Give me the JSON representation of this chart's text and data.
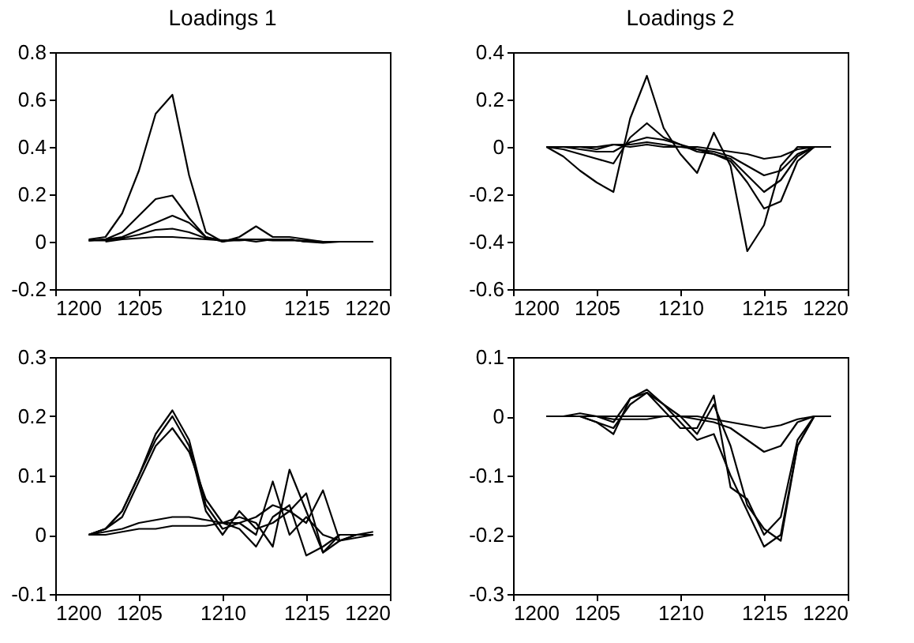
{
  "chart_data": [
    {
      "type": "line",
      "title": "Loadings 1",
      "x": [
        1202,
        1203,
        1204,
        1205,
        1206,
        1207,
        1208,
        1209,
        1210,
        1211,
        1212,
        1213,
        1214,
        1215,
        1216,
        1217,
        1218,
        1219
      ],
      "xlim": [
        1200,
        1220
      ],
      "xticks": [
        1200,
        1205,
        1210,
        1215,
        1220
      ],
      "ylim": [
        -0.2,
        0.8
      ],
      "yticks": [
        -0.2,
        0,
        0.2,
        0.4,
        0.6,
        0.8
      ],
      "series": [
        {
          "color": "#000000",
          "values": [
            0.01,
            0.02,
            0.12,
            0.3,
            0.54,
            0.62,
            0.28,
            0.04,
            0.0,
            0.01,
            0.01,
            0.01,
            0.01,
            0.0,
            0,
            0,
            0,
            0
          ]
        },
        {
          "color": "#000000",
          "values": [
            0.005,
            0.01,
            0.04,
            0.11,
            0.18,
            0.195,
            0.1,
            0.02,
            0.0,
            0.02,
            0.065,
            0.02,
            0.02,
            0.01,
            0,
            0,
            0,
            0
          ]
        },
        {
          "color": "#000000",
          "values": [
            0.005,
            0.01,
            0.02,
            0.05,
            0.08,
            0.11,
            0.08,
            0.02,
            0.005,
            0.01,
            0.01,
            0.01,
            0.01,
            0,
            0,
            0,
            0,
            0
          ]
        },
        {
          "color": "#000000",
          "x": [
            1202,
            1203,
            1204,
            1205,
            1206,
            1207,
            1208,
            1209,
            1210,
            1211,
            1212,
            1213,
            1214,
            1215,
            1216,
            1217,
            1218
          ],
          "values": [
            0.005,
            0.005,
            0.015,
            0.03,
            0.05,
            0.055,
            0.04,
            0.015,
            0.005,
            0.01,
            0.0,
            0.01,
            0.01,
            0.0,
            -0.005,
            0,
            0
          ]
        },
        {
          "color": "#000000",
          "x": [
            1203,
            1204,
            1205,
            1206,
            1207,
            1208,
            1209,
            1210,
            1211,
            1212,
            1213,
            1214,
            1215,
            1216,
            1217,
            1218,
            1219
          ],
          "values": [
            0,
            0.01,
            0.015,
            0.02,
            0.02,
            0.015,
            0.01,
            0.005,
            0.005,
            0.01,
            0.005,
            0.005,
            0.005,
            0,
            0,
            0,
            0
          ]
        }
      ]
    },
    {
      "type": "line",
      "title": "Loadings 2",
      "x": [
        1202,
        1203,
        1204,
        1205,
        1206,
        1207,
        1208,
        1209,
        1210,
        1211,
        1212,
        1213,
        1214,
        1215,
        1216,
        1217,
        1218,
        1219
      ],
      "xlim": [
        1200,
        1220
      ],
      "xticks": [
        1200,
        1205,
        1210,
        1215,
        1220
      ],
      "ylim": [
        -0.6,
        0.4
      ],
      "yticks": [
        -0.6,
        -0.4,
        -0.2,
        0,
        0.2,
        0.4
      ],
      "series": [
        {
          "color": "#000000",
          "values": [
            0,
            -0.04,
            -0.1,
            -0.15,
            -0.19,
            0.12,
            0.3,
            0.08,
            -0.03,
            -0.11,
            0.06,
            -0.08,
            -0.44,
            -0.33,
            -0.08,
            0,
            0,
            0
          ]
        },
        {
          "color": "#000000",
          "values": [
            0,
            -0.01,
            -0.03,
            -0.05,
            -0.07,
            0.04,
            0.1,
            0.04,
            0.01,
            -0.02,
            -0.03,
            -0.06,
            -0.15,
            -0.26,
            -0.23,
            -0.06,
            0,
            0
          ]
        },
        {
          "color": "#000000",
          "values": [
            0,
            0,
            -0.01,
            -0.02,
            -0.02,
            0.02,
            0.04,
            0.03,
            0.01,
            -0.01,
            -0.03,
            -0.05,
            -0.12,
            -0.19,
            -0.14,
            -0.04,
            0,
            0
          ]
        },
        {
          "color": "#000000",
          "x": [
            1202,
            1203,
            1204,
            1205,
            1206,
            1207,
            1208,
            1209,
            1210,
            1211,
            1212,
            1213,
            1214,
            1215,
            1216,
            1217,
            1218
          ],
          "values": [
            0,
            0,
            0,
            -0.01,
            0.01,
            0.01,
            0.02,
            0.01,
            0,
            -0.01,
            -0.02,
            -0.04,
            -0.08,
            -0.12,
            -0.1,
            -0.03,
            0
          ]
        },
        {
          "color": "#000000",
          "x": [
            1203,
            1204,
            1205,
            1206,
            1207,
            1208,
            1209,
            1210,
            1211,
            1212,
            1213,
            1214,
            1215,
            1216,
            1217,
            1218,
            1219
          ],
          "values": [
            0,
            0,
            0,
            0.01,
            0,
            0.01,
            0,
            0,
            0,
            -0.01,
            -0.02,
            -0.03,
            -0.05,
            -0.04,
            -0.01,
            0,
            0
          ]
        }
      ]
    },
    {
      "type": "line",
      "x": [
        1202,
        1203,
        1204,
        1205,
        1206,
        1207,
        1208,
        1209,
        1210,
        1211,
        1212,
        1213,
        1214,
        1215,
        1216,
        1217,
        1218,
        1219
      ],
      "xlim": [
        1200,
        1220
      ],
      "xticks": [
        1200,
        1205,
        1210,
        1215,
        1220
      ],
      "ylim": [
        -0.1,
        0.3
      ],
      "yticks": [
        -0.1,
        0,
        0.1,
        0.2,
        0.3
      ],
      "series": [
        {
          "color": "#000000",
          "values": [
            0,
            0.01,
            0.04,
            0.1,
            0.17,
            0.21,
            0.16,
            0.05,
            0.01,
            0.02,
            0.0,
            0.09,
            0.0,
            0.03,
            0.0,
            -0.01,
            0,
            0
          ]
        },
        {
          "color": "#000000",
          "values": [
            0,
            0.01,
            0.03,
            0.09,
            0.15,
            0.18,
            0.14,
            0.06,
            0.02,
            0.03,
            0.02,
            -0.02,
            0.11,
            0.04,
            -0.03,
            0.0,
            0,
            0
          ]
        },
        {
          "color": "#000000",
          "values": [
            0,
            0.01,
            0.04,
            0.1,
            0.16,
            0.2,
            0.15,
            0.04,
            0.0,
            0.04,
            0.01,
            0.02,
            0.04,
            0.07,
            -0.03,
            -0.01,
            0,
            0
          ]
        },
        {
          "color": "#000000",
          "values": [
            0,
            0.005,
            0.01,
            0.02,
            0.025,
            0.03,
            0.03,
            0.025,
            0.02,
            0.02,
            0.03,
            0.05,
            0.04,
            0.02,
            0.075,
            -0.01,
            -0.005,
            0
          ]
        },
        {
          "color": "#000000",
          "values": [
            0,
            0,
            0.005,
            0.01,
            0.01,
            0.015,
            0.015,
            0.015,
            0.02,
            0.01,
            -0.02,
            0.03,
            0.05,
            -0.035,
            -0.02,
            0,
            0,
            0.005
          ]
        }
      ]
    },
    {
      "type": "line",
      "x": [
        1202,
        1203,
        1204,
        1205,
        1206,
        1207,
        1208,
        1209,
        1210,
        1211,
        1212,
        1213,
        1214,
        1215,
        1216,
        1217,
        1218,
        1219
      ],
      "xlim": [
        1200,
        1220
      ],
      "xticks": [
        1200,
        1205,
        1210,
        1215,
        1220
      ],
      "ylim": [
        -0.3,
        0.1
      ],
      "yticks": [
        -0.3,
        -0.2,
        -0.1,
        0,
        0.1
      ],
      "series": [
        {
          "color": "#000000",
          "values": [
            0,
            0,
            0,
            -0.01,
            -0.03,
            0.03,
            0.045,
            0.02,
            -0.01,
            -0.04,
            -0.03,
            -0.1,
            -0.16,
            -0.22,
            -0.2,
            -0.05,
            0,
            0
          ]
        },
        {
          "color": "#000000",
          "values": [
            0,
            0,
            0,
            -0.01,
            -0.02,
            0.02,
            0.04,
            0.02,
            0,
            -0.03,
            0.02,
            -0.05,
            -0.15,
            -0.19,
            -0.21,
            -0.05,
            0,
            0
          ]
        },
        {
          "color": "#000000",
          "values": [
            0,
            0,
            0.005,
            0,
            -0.01,
            0.03,
            0.04,
            0.01,
            -0.02,
            -0.02,
            0.035,
            -0.12,
            -0.14,
            -0.2,
            -0.17,
            -0.04,
            0,
            0
          ]
        },
        {
          "color": "#000000",
          "values": [
            0,
            0,
            0,
            0,
            -0.005,
            -0.005,
            -0.005,
            0,
            0,
            -0.005,
            -0.01,
            -0.02,
            -0.04,
            -0.06,
            -0.05,
            -0.01,
            0,
            0
          ]
        },
        {
          "color": "#000000",
          "values": [
            0,
            0,
            0,
            0,
            0,
            0,
            0,
            0,
            0,
            0,
            -0.005,
            -0.01,
            -0.015,
            -0.02,
            -0.015,
            -0.005,
            0,
            0
          ]
        }
      ]
    }
  ]
}
